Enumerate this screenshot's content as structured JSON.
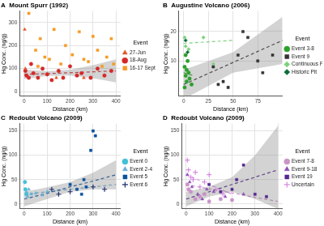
{
  "chart_data": [
    {
      "type": "scatter",
      "panel": "A",
      "title": "Mount Spurr (1992)",
      "x_label": "Distance (km)",
      "y_label": "Hg Conc. (ng/g)",
      "legend": "right",
      "legend_title": "Event",
      "grid": true,
      "xlim": [
        -20,
        420
      ],
      "xticks": [
        0,
        100,
        200,
        300,
        400
      ],
      "ylim": [
        -20,
        350
      ],
      "yticks": [
        0,
        100,
        200,
        300
      ],
      "series": [
        {
          "name": "27-Jun",
          "color": "#e4572e",
          "marker": "triangle",
          "x": [
            2,
            5,
            140,
            260
          ],
          "values": [
            270,
            100,
            60,
            60
          ]
        },
        {
          "name": "18-Aug",
          "color": "#d62728",
          "marker": "circle",
          "x": [
            5,
            10,
            20,
            30,
            40,
            60,
            80,
            100,
            120,
            150,
            170,
            200,
            230,
            250,
            290,
            320,
            350,
            380
          ],
          "values": [
            90,
            70,
            60,
            120,
            80,
            60,
            100,
            75,
            50,
            90,
            60,
            110,
            70,
            80,
            60,
            100,
            70,
            90
          ]
        },
        {
          "name": "16-17 Sept",
          "color": "#f59b23",
          "marker": "square",
          "x": [
            20,
            50,
            60,
            70,
            90,
            110,
            130,
            160,
            180,
            210,
            240,
            260,
            280,
            300,
            320,
            340,
            360,
            380,
            390
          ],
          "values": [
            340,
            180,
            110,
            230,
            150,
            140,
            270,
            120,
            200,
            160,
            260,
            140,
            130,
            240,
            180,
            110,
            150,
            230,
            120
          ]
        }
      ],
      "fits": [
        {
          "color": "#d62728",
          "line_style": "dashed",
          "x": [
            0,
            100,
            200,
            300,
            400
          ],
          "values": [
            75,
            78,
            82,
            86,
            90
          ],
          "lower": [
            55,
            68,
            70,
            58,
            40
          ],
          "upper": [
            95,
            88,
            95,
            115,
            140
          ]
        }
      ]
    },
    {
      "type": "scatter",
      "panel": "B",
      "title": "Augustine Volcano (2006)",
      "x_label": "Distance (km)",
      "y_label": "Hg Conc. (ng/g)",
      "legend": "right",
      "legend_title": "Event",
      "grid": true,
      "xlim": [
        -5,
        100
      ],
      "xticks": [
        0,
        25,
        50,
        75
      ],
      "ylim": [
        -2,
        27
      ],
      "yticks": [
        10,
        20
      ],
      "series": [
        {
          "name": "Event 3-8",
          "color": "#2ca02c",
          "marker": "circle",
          "x": [
            1,
            2,
            3,
            4,
            5,
            6,
            8,
            2,
            3,
            1
          ],
          "values": [
            8,
            5,
            3,
            10,
            6,
            4,
            2,
            12,
            7,
            1
          ]
        },
        {
          "name": "Event 9",
          "color": "#333333",
          "marker": "square",
          "x": [
            30,
            35,
            40,
            45,
            55,
            60,
            65,
            75,
            80,
            90
          ],
          "values": [
            8,
            2,
            3,
            1,
            12,
            20,
            18,
            10,
            6,
            12
          ]
        },
        {
          "name": "Continuous Phase",
          "color": "#7fd17f",
          "marker": "diamond",
          "x": [
            1,
            2,
            5,
            20,
            30
          ],
          "values": [
            18,
            15,
            14,
            18,
            9
          ]
        },
        {
          "name": "Historic Pit",
          "color": "#0b6e3a",
          "marker": "diamond",
          "x": [
            2,
            4
          ],
          "values": [
            17,
            13
          ]
        }
      ],
      "fits": [
        {
          "color": "#333333",
          "line_style": "dashed",
          "x": [
            0,
            50,
            100
          ],
          "values": [
            2,
            9.5,
            17
          ],
          "lower": [
            -3,
            6,
            9
          ],
          "upper": [
            7,
            13,
            25
          ]
        },
        {
          "color": "#7fd17f",
          "line_style": "dashed",
          "x": [
            0,
            50
          ],
          "values": [
            16,
            17
          ]
        },
        {
          "color": "#2ca02c",
          "line_style": "dashed",
          "x": [
            0,
            10
          ],
          "values": [
            6,
            5
          ]
        }
      ]
    },
    {
      "type": "scatter",
      "panel": "C",
      "title": "Redoubt Volcano (2009)",
      "x_label": "Distance (km)",
      "y_label": "Hg Conc. (ng/g)",
      "legend": "right",
      "legend_title": "Event",
      "grid": true,
      "xlim": [
        -20,
        420
      ],
      "xticks": [
        0,
        100,
        200,
        300,
        400
      ],
      "ylim": [
        -10,
        165
      ],
      "yticks": [
        0,
        50,
        100,
        150
      ],
      "series": [
        {
          "name": "Event 0",
          "color": "#41c0d6",
          "marker": "circle",
          "x": [
            5,
            10,
            3
          ],
          "values": [
            30,
            20,
            45
          ]
        },
        {
          "name": "Event 2-4",
          "color": "#6baed6",
          "marker": "triangle",
          "x": [
            10,
            15,
            20,
            30,
            50,
            80,
            100
          ],
          "values": [
            25,
            15,
            30,
            20,
            22,
            18,
            25
          ]
        },
        {
          "name": "Event 5",
          "color": "#08519c",
          "marker": "square",
          "x": [
            200,
            230,
            260,
            290,
            300,
            310,
            270,
            250
          ],
          "values": [
            40,
            30,
            50,
            110,
            150,
            140,
            35,
            20
          ]
        },
        {
          "name": "Event 6",
          "color": "#1f2f6e",
          "marker": "cross",
          "x": [
            120,
            150,
            200,
            300,
            350
          ],
          "values": [
            30,
            20,
            25,
            35,
            30
          ]
        }
      ],
      "fits": [
        {
          "color": "#08519c",
          "line_style": "dashed",
          "x": [
            0,
            100,
            200,
            300,
            400
          ],
          "values": [
            10,
            22,
            35,
            47,
            60
          ],
          "lower": [
            -5,
            10,
            25,
            30,
            30
          ],
          "upper": [
            25,
            34,
            45,
            64,
            90
          ]
        },
        {
          "color": "#6baed6",
          "line_style": "dashed",
          "x": [
            0,
            400
          ],
          "values": [
            20,
            40
          ]
        }
      ]
    },
    {
      "type": "scatter",
      "panel": "D",
      "title": "Redoubt Volcano (2009)",
      "x_label": "Distance (km)",
      "y_label": "Hg Conc. (ng/g)",
      "legend": "right",
      "legend_title": "Event",
      "grid": true,
      "xlim": [
        -20,
        420
      ],
      "xticks": [
        0,
        100,
        200,
        300,
        400
      ],
      "ylim": [
        -10,
        165
      ],
      "yticks": [
        0,
        50,
        100,
        150
      ],
      "series": [
        {
          "name": "Event 7-8",
          "color": "#c994c7",
          "marker": "circle",
          "x": [
            5,
            10,
            20,
            40,
            60,
            80,
            100,
            150,
            200
          ],
          "values": [
            40,
            30,
            25,
            10,
            15,
            20,
            5,
            10,
            8
          ]
        },
        {
          "name": "Event 9-18",
          "color": "#8c4fb5",
          "marker": "triangle",
          "x": [
            5,
            15,
            25,
            50,
            70,
            90,
            120,
            170,
            250
          ],
          "values": [
            60,
            45,
            35,
            20,
            10,
            30,
            25,
            15,
            20
          ]
        },
        {
          "name": "Event 19",
          "color": "#54278f",
          "marker": "square",
          "x": [
            100,
            150,
            200,
            250,
            300,
            350,
            220
          ],
          "values": [
            40,
            25,
            30,
            80,
            20,
            15,
            50
          ]
        },
        {
          "name": "Uncertain",
          "color": "#d88ce0",
          "marker": "cross",
          "x": [
            5,
            10,
            20,
            30,
            40,
            60,
            80,
            100,
            130,
            160
          ],
          "values": [
            90,
            70,
            55,
            50,
            65,
            35,
            45,
            60,
            30,
            20
          ]
        }
      ],
      "fits": [
        {
          "color": "#54278f",
          "line_style": "dashed",
          "x": [
            0,
            100,
            200,
            300,
            400
          ],
          "values": [
            10,
            25,
            40,
            55,
            70
          ],
          "lower": [
            -5,
            15,
            25,
            10,
            -10
          ],
          "upper": [
            25,
            35,
            55,
            100,
            160
          ]
        },
        {
          "color": "#c994c7",
          "line_style": "dashed",
          "x": [
            0,
            400
          ],
          "values": [
            40,
            5
          ]
        },
        {
          "color": "#d88ce0",
          "line_style": "dashed",
          "x": [
            0,
            200
          ],
          "values": [
            60,
            20
          ]
        }
      ]
    }
  ]
}
